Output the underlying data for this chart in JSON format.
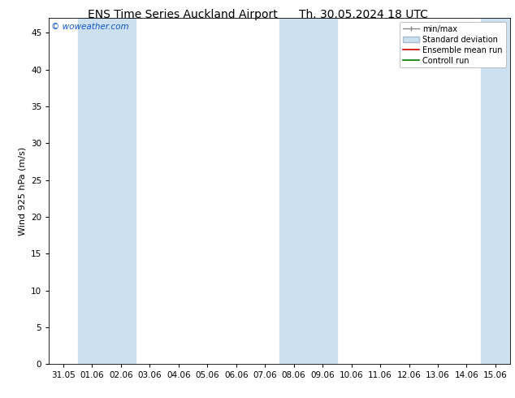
{
  "title": "ENS Time Series Auckland Airport      Th. 30.05.2024 18 UTC",
  "ylabel": "Wind 925 hPa (m/s)",
  "watermark": "© woweather.com",
  "x_tick_labels": [
    "31.05",
    "01.06",
    "02.06",
    "03.06",
    "04.06",
    "05.06",
    "06.06",
    "07.06",
    "08.06",
    "09.06",
    "10.06",
    "11.06",
    "12.06",
    "13.06",
    "14.06",
    "15.06"
  ],
  "x_tick_positions": [
    0,
    1,
    2,
    3,
    4,
    5,
    6,
    7,
    8,
    9,
    10,
    11,
    12,
    13,
    14,
    15
  ],
  "ylim": [
    0,
    47
  ],
  "yticks": [
    0,
    5,
    10,
    15,
    20,
    25,
    30,
    35,
    40,
    45
  ],
  "xlim": [
    0,
    15
  ],
  "background_color": "#ffffff",
  "plot_bg_color": "#ffffff",
  "shaded_band_color": "#cce0f0",
  "shaded_columns": [
    1,
    2,
    8,
    9,
    15
  ],
  "legend_entries": [
    "min/max",
    "Standard deviation",
    "Ensemble mean run",
    "Controll run"
  ],
  "legend_colors_line": [
    "#aaaaaa",
    "#bbccdd",
    "#cc0000",
    "#007700"
  ],
  "title_fontsize": 10,
  "axis_label_fontsize": 8,
  "tick_fontsize": 7.5
}
